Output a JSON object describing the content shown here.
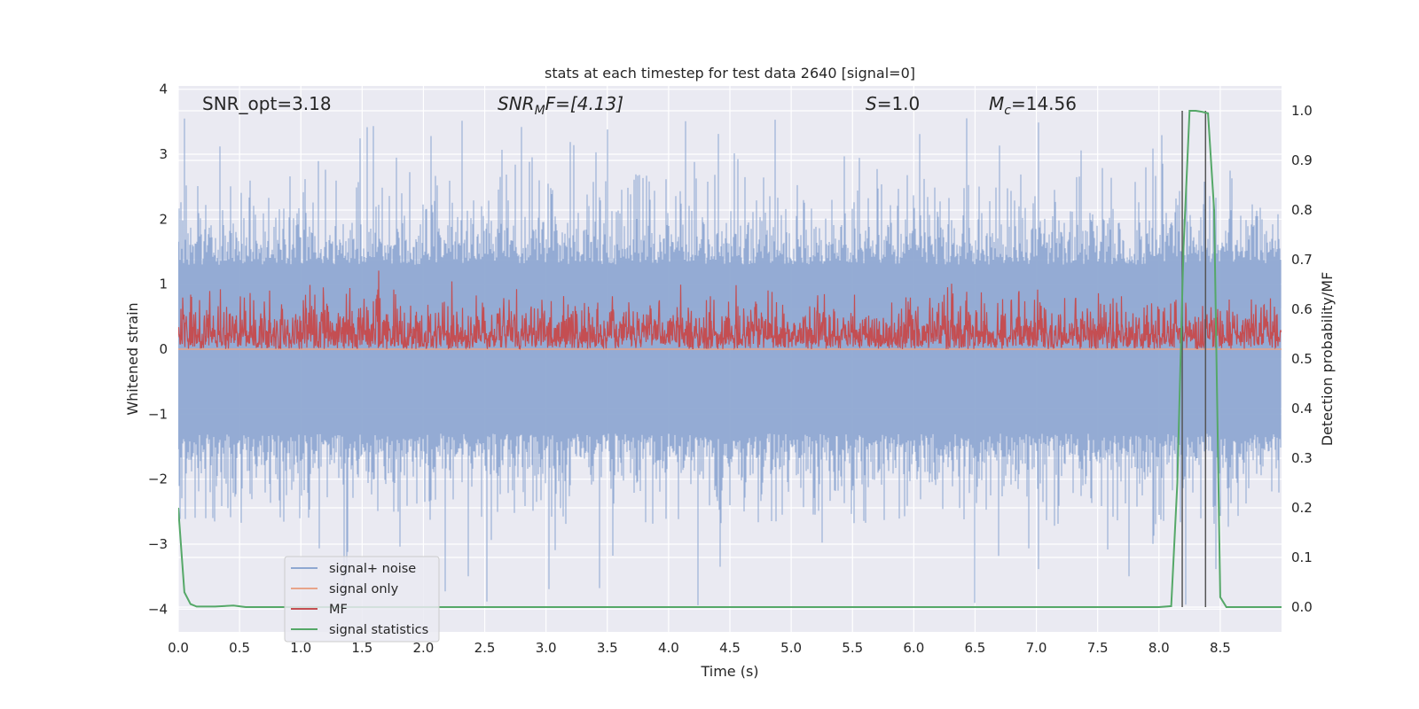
{
  "chart_data": {
    "type": "line",
    "title": "stats at each timestep for test data 2640 [signal=0]",
    "xlabel": "Time (s)",
    "ylabel": "Whitened strain",
    "y2label": "Detection probability/MF",
    "xlim": [
      0.0,
      9.0
    ],
    "ylim": [
      -4.35,
      4.05
    ],
    "y2lim": [
      -0.05,
      1.05
    ],
    "xticks": [
      "0.0",
      "0.5",
      "1.0",
      "1.5",
      "2.0",
      "2.5",
      "3.0",
      "3.5",
      "4.0",
      "4.5",
      "5.0",
      "5.5",
      "6.0",
      "6.5",
      "7.0",
      "7.5",
      "8.0",
      "8.5"
    ],
    "yticks": [
      "4",
      "3",
      "2",
      "1",
      "0",
      "−1",
      "−2",
      "−3",
      "−4"
    ],
    "y2ticks": [
      "1.0",
      "0.9",
      "0.8",
      "0.7",
      "0.6",
      "0.5",
      "0.4",
      "0.3",
      "0.2",
      "0.1",
      "0.0"
    ],
    "annotations": {
      "snr_opt": "SNR_opt=3.18",
      "snr_mf_var": "SNR",
      "snr_mf_sub": "M",
      "snr_mf_rest": "F=[4.13]",
      "s_var": "S",
      "s_rest": "=1.0",
      "mc_var": "M",
      "mc_sub": "c",
      "mc_rest": "=14.56"
    },
    "legend": {
      "placement": "lower-left",
      "entries": [
        {
          "label": "signal+ noise",
          "color": "#8fa8d2"
        },
        {
          "label": "signal only",
          "color": "#e8a48a"
        },
        {
          "label": "MF",
          "color": "#c44e52"
        },
        {
          "label": "signal statistics",
          "color": "#55a868"
        }
      ]
    },
    "series": [
      {
        "name": "signal+ noise",
        "description": "whitened strain noise, roughly |x| < 2 with peaks to about ±3.6",
        "color": "#8fa8d2",
        "envelope_max": 3.6,
        "envelope_min": -4.0
      },
      {
        "name": "signal only",
        "color": "#e8a48a",
        "x": [
          0.0,
          9.0
        ],
        "y": [
          0.0,
          0.0
        ]
      },
      {
        "name": "MF",
        "axis": "right",
        "description": "matched-filter output, ~0.52–0.6 with spikes near 0.65",
        "color": "#c44e52",
        "base": 0.53,
        "spread": 0.075
      },
      {
        "name": "signal statistics",
        "axis": "right",
        "color": "#55a868",
        "x": [
          0.0,
          0.05,
          0.1,
          0.15,
          0.3,
          0.45,
          0.55,
          1.0,
          8.0,
          8.1,
          8.15,
          8.2,
          8.25,
          8.3,
          8.35,
          8.4,
          8.45,
          8.5,
          8.55,
          8.6,
          9.0
        ],
        "y": [
          0.2,
          0.03,
          0.006,
          0.001,
          0.001,
          0.003,
          0.0,
          0.0,
          0.0,
          0.002,
          0.25,
          0.72,
          1.0,
          1.0,
          0.998,
          0.995,
          0.8,
          0.02,
          0.0,
          0.0,
          0.0
        ]
      }
    ],
    "vlines": [
      8.19,
      8.38
    ],
    "vline_color": "#555555"
  }
}
